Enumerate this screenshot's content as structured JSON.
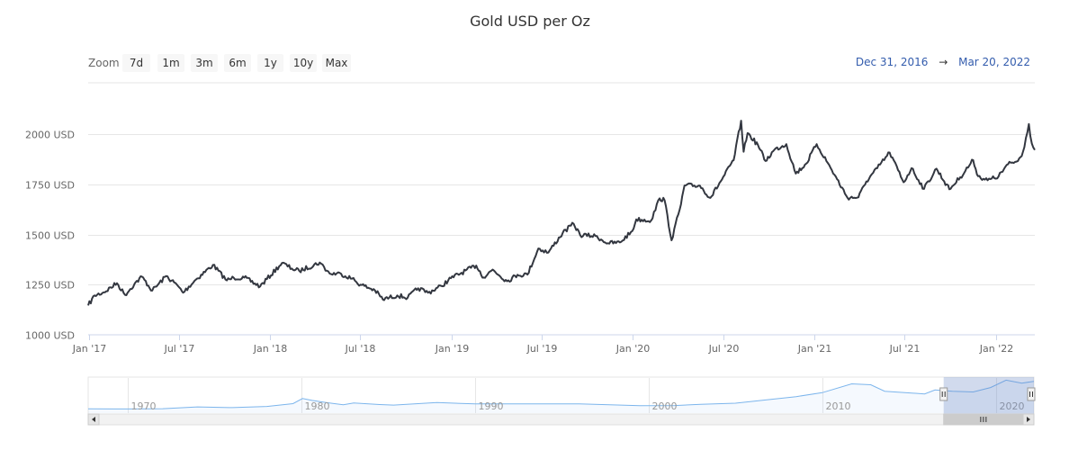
{
  "chart_data": {
    "type": "line",
    "title": "Gold USD per Oz",
    "zoom": {
      "label": "Zoom",
      "buttons": [
        "7d",
        "1m",
        "3m",
        "6m",
        "1y",
        "10y",
        "Max"
      ]
    },
    "range": {
      "from": "Dec 31, 2016",
      "arrow": "→",
      "to": "Mar 20, 2022"
    },
    "y_ticks": [
      "1000 USD",
      "1250 USD",
      "1500 USD",
      "1750 USD",
      "2000 USD"
    ],
    "y_tick_values": [
      1000,
      1250,
      1500,
      1750,
      2000
    ],
    "ylim": [
      1000,
      2000
    ],
    "x_ticks": [
      "Jan '17",
      "Jul '17",
      "Jan '18",
      "Jul '18",
      "Jan '19",
      "Jul '19",
      "Jan '20",
      "Jul '20",
      "Jan '21",
      "Jul '21",
      "Jan '22"
    ],
    "x_tick_dates": [
      "2017-01-01",
      "2017-07-01",
      "2018-01-01",
      "2018-07-01",
      "2019-01-01",
      "2019-07-01",
      "2020-01-01",
      "2020-07-01",
      "2021-01-01",
      "2021-07-01",
      "2022-01-01"
    ],
    "xlim": [
      "2016-12-31",
      "2022-03-20"
    ],
    "grid": true,
    "legend": "none",
    "series": [
      {
        "color": "#333740",
        "points": [
          [
            "2016-12-31",
            1146
          ],
          [
            "2017-01-13",
            1196
          ],
          [
            "2017-01-31",
            1211
          ],
          [
            "2017-02-27",
            1257
          ],
          [
            "2017-03-15",
            1199
          ],
          [
            "2017-04-03",
            1253
          ],
          [
            "2017-04-18",
            1290
          ],
          [
            "2017-05-09",
            1220
          ],
          [
            "2017-06-06",
            1293
          ],
          [
            "2017-06-30",
            1242
          ],
          [
            "2017-07-10",
            1210
          ],
          [
            "2017-08-02",
            1269
          ],
          [
            "2017-09-08",
            1348
          ],
          [
            "2017-10-06",
            1271
          ],
          [
            "2017-10-20",
            1284
          ],
          [
            "2017-11-10",
            1285
          ],
          [
            "2017-12-12",
            1241
          ],
          [
            "2018-01-25",
            1358
          ],
          [
            "2018-02-14",
            1330
          ],
          [
            "2018-03-01",
            1318
          ],
          [
            "2018-04-11",
            1360
          ],
          [
            "2018-05-01",
            1305
          ],
          [
            "2018-05-24",
            1304
          ],
          [
            "2018-06-15",
            1280
          ],
          [
            "2018-07-02",
            1250
          ],
          [
            "2018-07-31",
            1222
          ],
          [
            "2018-08-16",
            1176
          ],
          [
            "2018-09-14",
            1196
          ],
          [
            "2018-10-05",
            1185
          ],
          [
            "2018-10-26",
            1232
          ],
          [
            "2018-11-15",
            1210
          ],
          [
            "2018-12-12",
            1243
          ],
          [
            "2018-12-31",
            1282
          ],
          [
            "2019-02-20",
            1345
          ],
          [
            "2019-03-07",
            1285
          ],
          [
            "2019-03-25",
            1325
          ],
          [
            "2019-04-23",
            1267
          ],
          [
            "2019-05-14",
            1299
          ],
          [
            "2019-06-03",
            1300
          ],
          [
            "2019-06-25",
            1430
          ],
          [
            "2019-07-15",
            1410
          ],
          [
            "2019-08-13",
            1508
          ],
          [
            "2019-09-04",
            1553
          ],
          [
            "2019-09-17",
            1497
          ],
          [
            "2019-10-18",
            1492
          ],
          [
            "2019-11-12",
            1456
          ],
          [
            "2019-12-06",
            1460
          ],
          [
            "2019-12-31",
            1517
          ],
          [
            "2020-01-08",
            1575
          ],
          [
            "2020-02-07",
            1570
          ],
          [
            "2020-02-24",
            1680
          ],
          [
            "2020-03-05",
            1670
          ],
          [
            "2020-03-19",
            1471
          ],
          [
            "2020-04-07",
            1650
          ],
          [
            "2020-04-14",
            1744
          ],
          [
            "2020-05-15",
            1743
          ],
          [
            "2020-06-05",
            1682
          ],
          [
            "2020-06-26",
            1765
          ],
          [
            "2020-07-22",
            1870
          ],
          [
            "2020-08-06",
            2067
          ],
          [
            "2020-08-11",
            1912
          ],
          [
            "2020-08-19",
            2005
          ],
          [
            "2020-09-09",
            1945
          ],
          [
            "2020-09-24",
            1866
          ],
          [
            "2020-10-12",
            1922
          ],
          [
            "2020-11-05",
            1950
          ],
          [
            "2020-11-24",
            1803
          ],
          [
            "2020-12-15",
            1853
          ],
          [
            "2021-01-05",
            1950
          ],
          [
            "2021-02-02",
            1832
          ],
          [
            "2021-03-08",
            1683
          ],
          [
            "2021-03-30",
            1685
          ],
          [
            "2021-04-15",
            1764
          ],
          [
            "2021-05-07",
            1830
          ],
          [
            "2021-06-01",
            1908
          ],
          [
            "2021-06-29",
            1760
          ],
          [
            "2021-07-15",
            1830
          ],
          [
            "2021-08-09",
            1727
          ],
          [
            "2021-09-03",
            1828
          ],
          [
            "2021-09-29",
            1725
          ],
          [
            "2021-10-21",
            1785
          ],
          [
            "2021-11-16",
            1870
          ],
          [
            "2021-11-26",
            1790
          ],
          [
            "2021-12-15",
            1770
          ],
          [
            "2022-01-06",
            1789
          ],
          [
            "2022-01-25",
            1850
          ],
          [
            "2022-02-14",
            1866
          ],
          [
            "2022-02-24",
            1910
          ],
          [
            "2022-03-08",
            2050
          ],
          [
            "2022-03-14",
            1953
          ],
          [
            "2022-03-20",
            1921
          ]
        ]
      }
    ],
    "navigator": {
      "x_ticks": [
        "1970",
        "1980",
        "1990",
        "2000",
        "2010",
        "2020"
      ],
      "x_tick_years": [
        1970,
        1980,
        1990,
        2000,
        2010,
        2020
      ],
      "xlim": [
        1967.7,
        2022.2
      ],
      "selection": [
        2017.0,
        2022.21
      ],
      "color": "#7cb5ec",
      "points": [
        [
          1967.7,
          40
        ],
        [
          1970.0,
          36
        ],
        [
          1972.0,
          58
        ],
        [
          1974.0,
          180
        ],
        [
          1976.0,
          130
        ],
        [
          1978.0,
          210
        ],
        [
          1979.5,
          400
        ],
        [
          1980.05,
          750
        ],
        [
          1980.6,
          620
        ],
        [
          1981.5,
          460
        ],
        [
          1982.4,
          320
        ],
        [
          1983.0,
          440
        ],
        [
          1984.5,
          340
        ],
        [
          1985.3,
          300
        ],
        [
          1987.8,
          470
        ],
        [
          1990.0,
          380
        ],
        [
          1993.5,
          380
        ],
        [
          1996.0,
          390
        ],
        [
          1999.5,
          260
        ],
        [
          2001.5,
          270
        ],
        [
          2003.0,
          350
        ],
        [
          2005.0,
          430
        ],
        [
          2006.5,
          620
        ],
        [
          2008.5,
          880
        ],
        [
          2010.0,
          1150
        ],
        [
          2011.7,
          1750
        ],
        [
          2012.8,
          1690
        ],
        [
          2013.6,
          1250
        ],
        [
          2015.9,
          1060
        ],
        [
          2016.5,
          1330
        ],
        [
          2017.5,
          1250
        ],
        [
          2018.7,
          1200
        ],
        [
          2019.7,
          1500
        ],
        [
          2020.6,
          2000
        ],
        [
          2021.5,
          1800
        ],
        [
          2022.2,
          1920
        ]
      ]
    }
  }
}
